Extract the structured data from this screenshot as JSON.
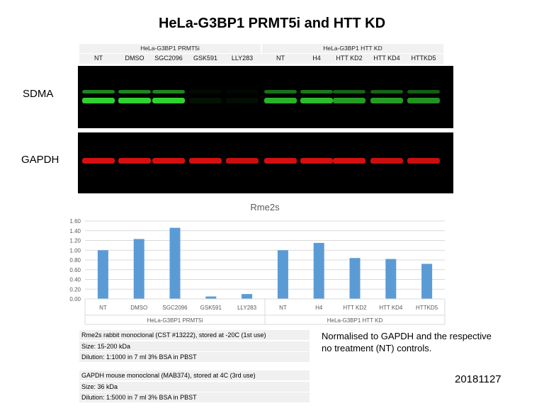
{
  "title": "HeLa-G3BP1 PRMT5i and HTT KD",
  "blot": {
    "groups": [
      "HeLa-G3BP1 PRMT5i",
      "HeLa-G3BP1 HTT KD"
    ],
    "lanes": [
      "NT",
      "DMSO",
      "SGC2096",
      "GSK591",
      "LLY283",
      "NT",
      "H4",
      "HTT KD2",
      "HTT KD4",
      "HTTKD5"
    ],
    "rows": [
      {
        "label": "SDMA",
        "color": "#33dd33",
        "intensity": [
          1.0,
          1.0,
          1.0,
          0.08,
          0.06,
          0.85,
          0.9,
          0.75,
          0.75,
          0.7
        ]
      },
      {
        "label": "GAPDH",
        "color": "#e01010",
        "intensity": [
          1.0,
          1.0,
          1.0,
          1.0,
          0.95,
          1.0,
          1.0,
          1.0,
          0.95,
          0.95
        ]
      }
    ]
  },
  "chart_data": {
    "type": "bar",
    "title": "Rme2s",
    "categories": [
      "NT",
      "DMSO",
      "SGC2096",
      "GSK591",
      "LLY283",
      "NT",
      "H4",
      "HTT KD2",
      "HTT KD4",
      "HTTKD5"
    ],
    "groups": [
      "HeLa-G3BP1 PRMT5i",
      "HeLa-G3BP1 HTT KD"
    ],
    "values": [
      1.0,
      1.23,
      1.46,
      0.05,
      0.1,
      1.0,
      1.15,
      0.84,
      0.82,
      0.72
    ],
    "ylim": [
      0,
      1.6
    ],
    "yticks": [
      "0.00",
      "0.20",
      "0.40",
      "0.60",
      "0.80",
      "1.00",
      "1.20",
      "1.40",
      "1.60"
    ],
    "grid": true,
    "bar_color": "#5b9bd5"
  },
  "antibody_info": [
    [
      "Rme2s rabbit monoclonal (CST #13222), stored at -20C (1st use)",
      "Size: 15-200  kDa",
      "Dilution: 1:1000 in 7 ml 3% BSA in PBST"
    ],
    [
      "GAPDH mouse monoclonal (MAB374), stored at 4C (3rd use)",
      "Size: 36 kDa",
      "Dilution: 1:5000 in 7 ml 3% BSA in PBST"
    ]
  ],
  "note": [
    "Normalised to GAPDH and the respective",
    "no treatment (NT) controls."
  ],
  "date": "20181127"
}
